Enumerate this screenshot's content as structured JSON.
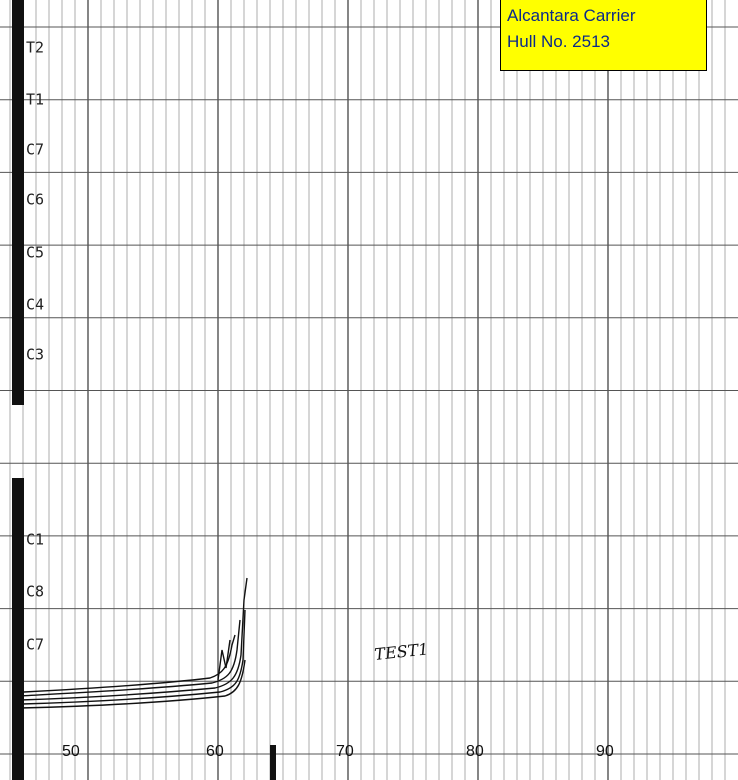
{
  "label_box": {
    "lines": [
      "Alcantara Carrier",
      "Hull No. 2513"
    ]
  },
  "upper_channels": [
    "T2",
    "T1",
    "C7",
    "C6",
    "C5",
    "C4",
    "C3"
  ],
  "lower_channels": [
    "C1",
    "C8",
    "C7"
  ],
  "scale": [
    "50",
    "60",
    "70",
    "80",
    "90"
  ],
  "annotation": "TEST1"
}
